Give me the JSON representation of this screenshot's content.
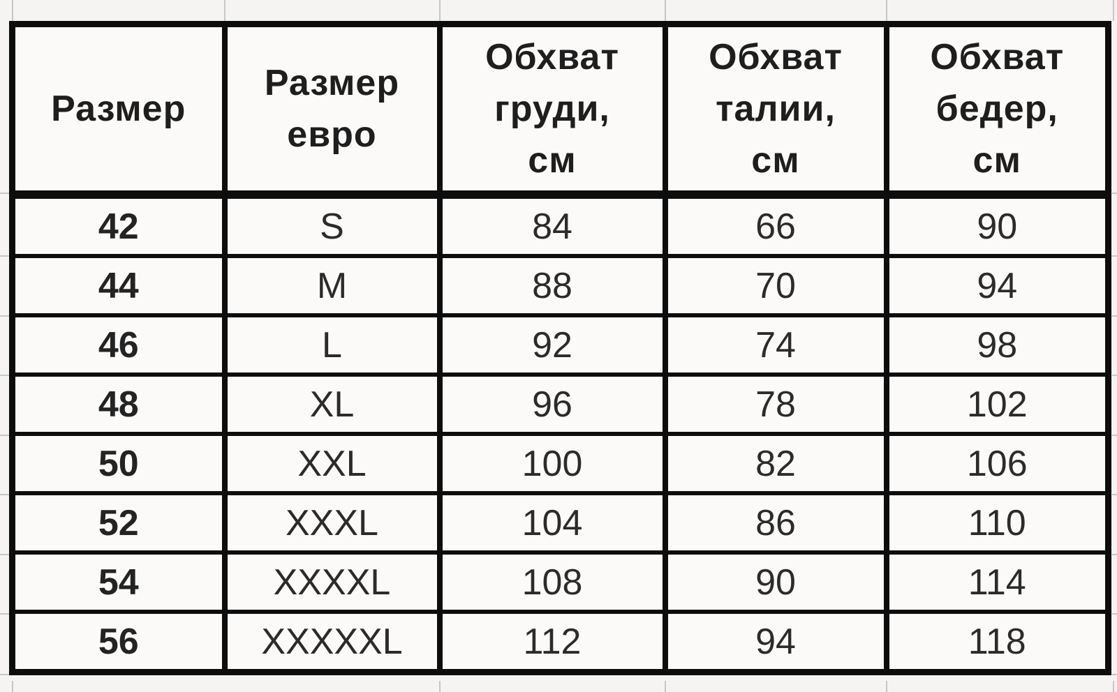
{
  "table": {
    "columns": [
      {
        "key": "ru_size",
        "label": "Размер"
      },
      {
        "key": "euro_size",
        "label": "Размер\nевро"
      },
      {
        "key": "chest_cm",
        "label": "Обхват\nгруди,\nсм"
      },
      {
        "key": "waist_cm",
        "label": "Обхват\nталии,\nсм"
      },
      {
        "key": "hips_cm",
        "label": "Обхват\nбедер,\nсм"
      }
    ],
    "rows": [
      {
        "ru_size": "42",
        "euro_size": "S",
        "chest_cm": "84",
        "waist_cm": "66",
        "hips_cm": "90"
      },
      {
        "ru_size": "44",
        "euro_size": "M",
        "chest_cm": "88",
        "waist_cm": "70",
        "hips_cm": "94"
      },
      {
        "ru_size": "46",
        "euro_size": "L",
        "chest_cm": "92",
        "waist_cm": "74",
        "hips_cm": "98"
      },
      {
        "ru_size": "48",
        "euro_size": "XL",
        "chest_cm": "96",
        "waist_cm": "78",
        "hips_cm": "102"
      },
      {
        "ru_size": "50",
        "euro_size": "XXL",
        "chest_cm": "100",
        "waist_cm": "82",
        "hips_cm": "106"
      },
      {
        "ru_size": "52",
        "euro_size": "XXXL",
        "chest_cm": "104",
        "waist_cm": "86",
        "hips_cm": "110"
      },
      {
        "ru_size": "54",
        "euro_size": "XXXXL",
        "chest_cm": "108",
        "waist_cm": "90",
        "hips_cm": "114"
      },
      {
        "ru_size": "56",
        "euro_size": "XXXXXL",
        "chest_cm": "112",
        "waist_cm": "94",
        "hips_cm": "118"
      }
    ]
  },
  "colors": {
    "table_border": "#0d0d0d",
    "header_text": "#1e1e1e",
    "cell_text": "#2b2b2b",
    "cell_background": "#fbfaf8",
    "sheet_background": "#f5f4f2",
    "worksheet_gridline": "#c7c7c4"
  }
}
